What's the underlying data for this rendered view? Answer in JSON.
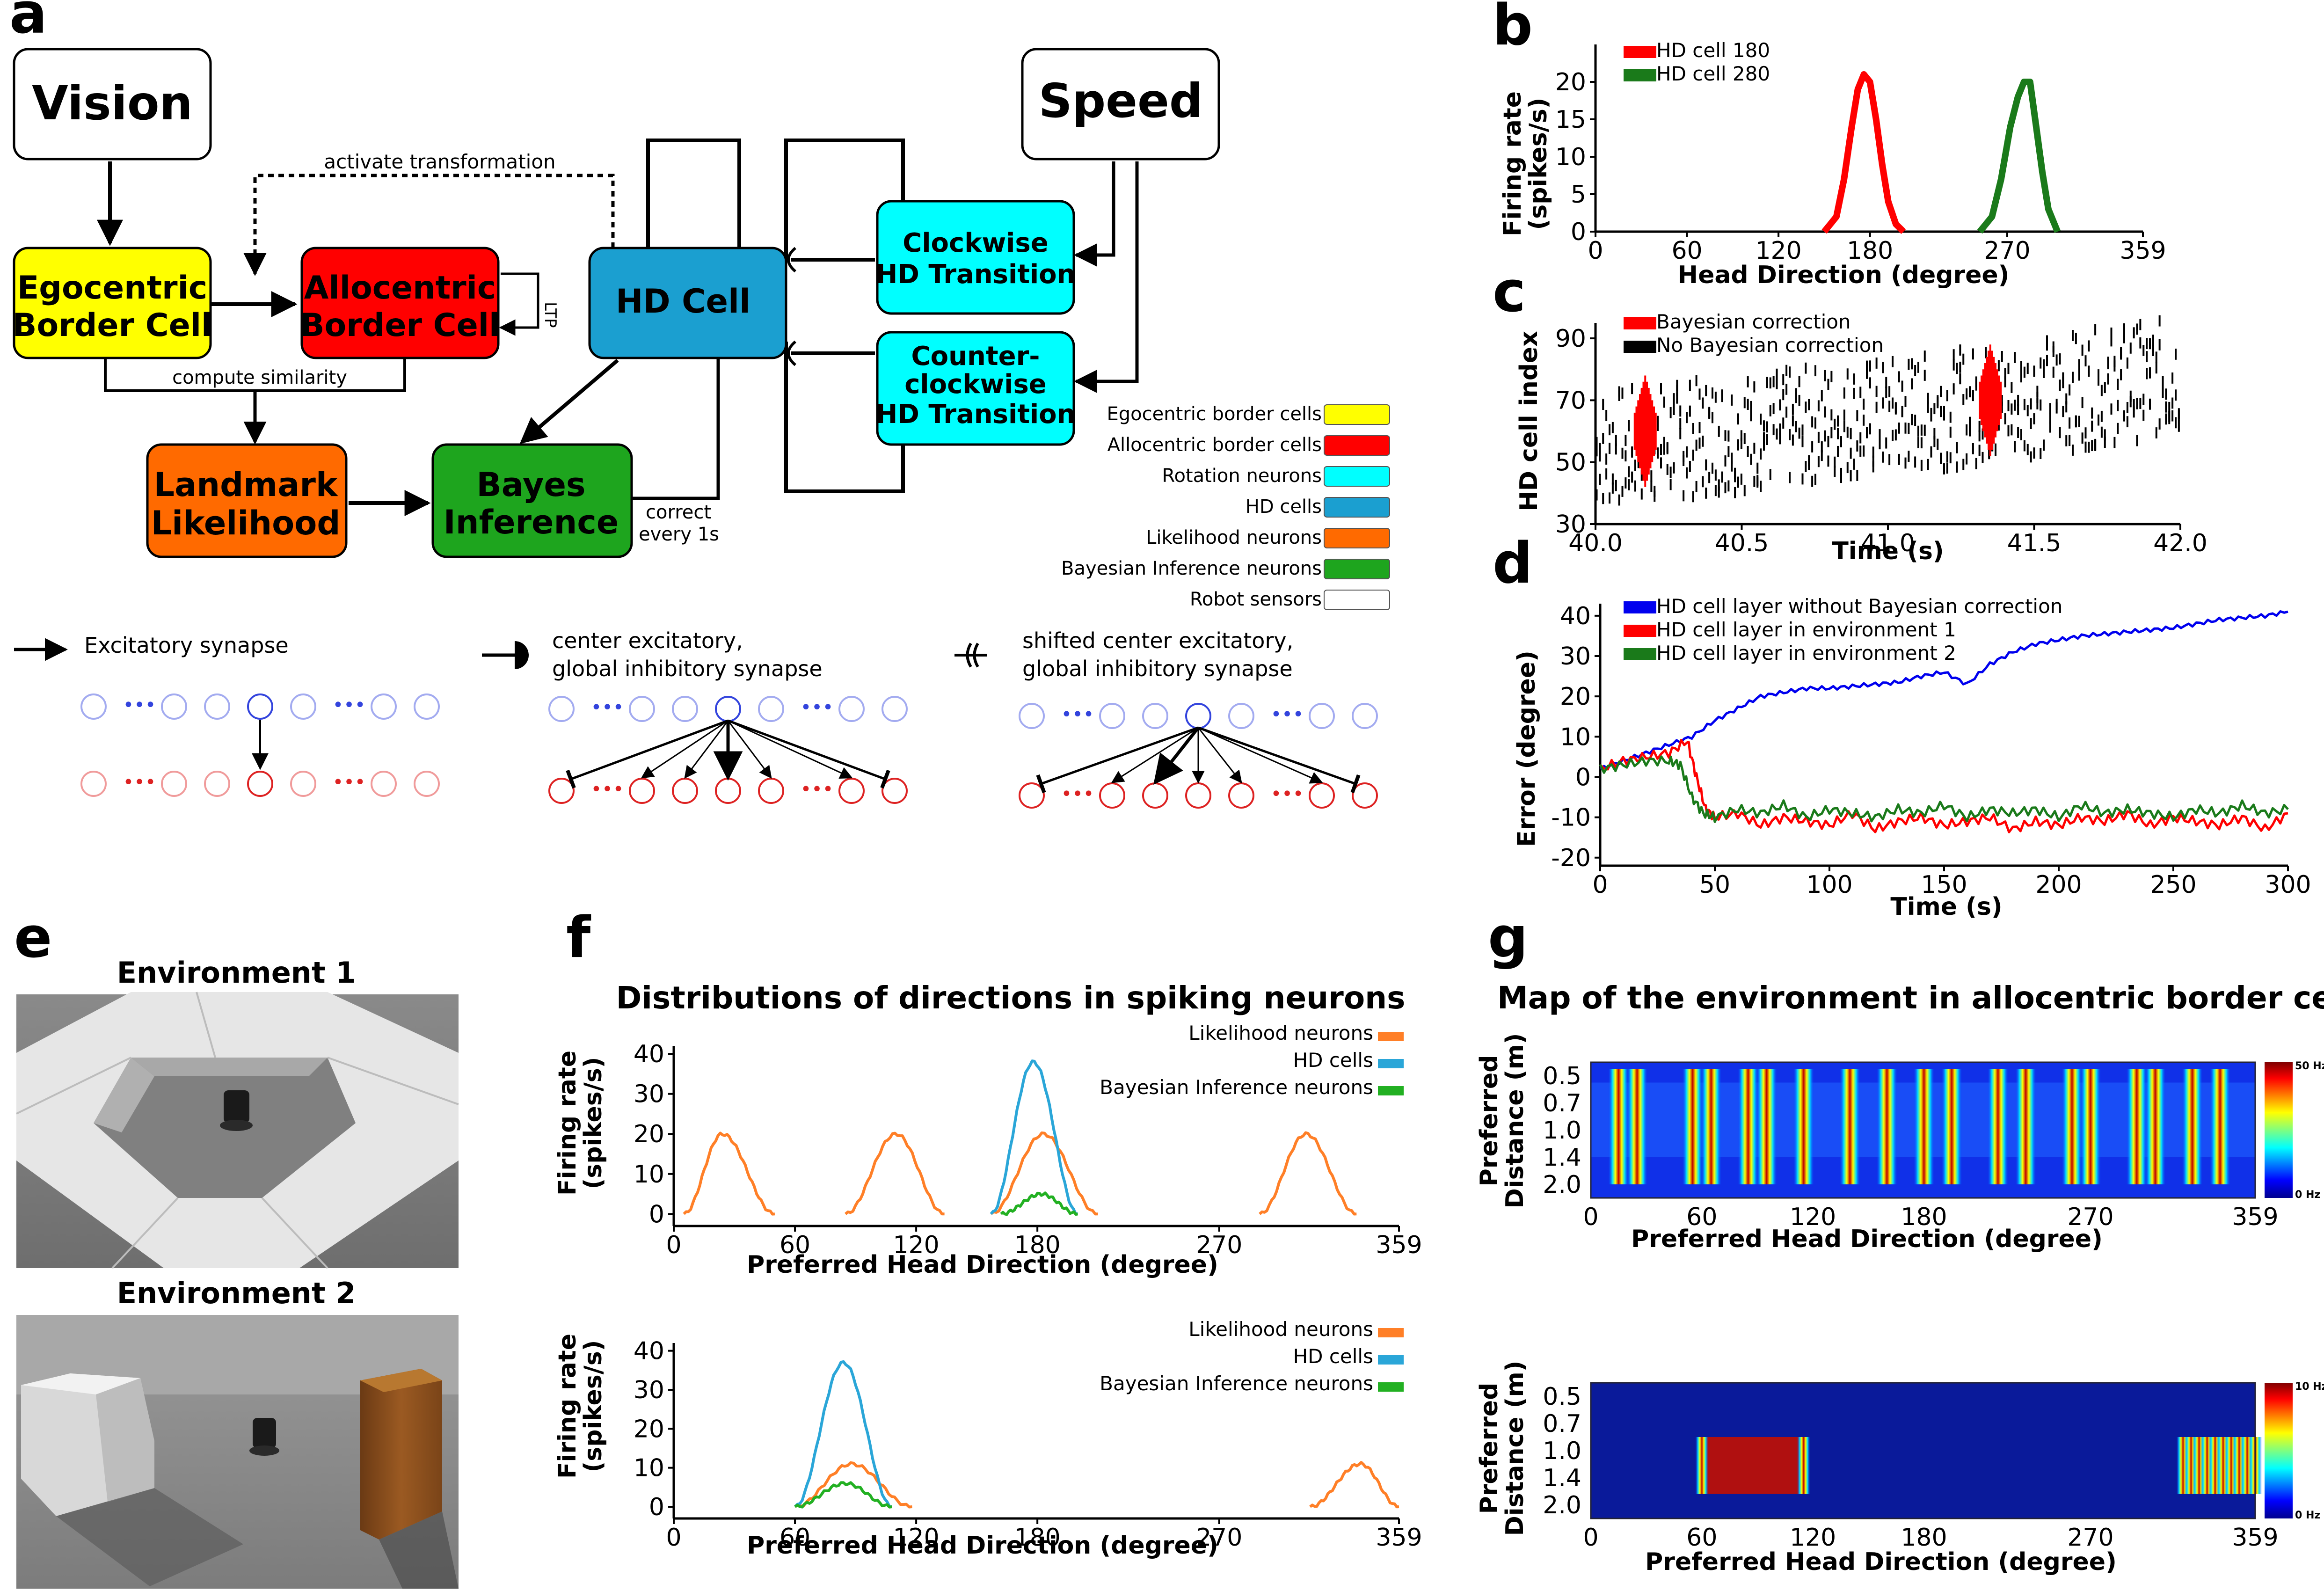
{
  "panels": {
    "a": "a",
    "b": "b",
    "c": "c",
    "d": "d",
    "e": "e",
    "f": "f",
    "g": "g"
  },
  "diagram": {
    "nodes": {
      "vision": "Vision",
      "speed": "Speed",
      "ego": [
        "Egocentric",
        "Border Cell"
      ],
      "allo": [
        "Allocentric",
        "Border Cell"
      ],
      "hd": "HD Cell",
      "cw": [
        "Clockwise",
        "HD Transition"
      ],
      "ccw": [
        "Counter-",
        "clockwise",
        "HD Transition"
      ],
      "landmark": [
        "Landmark",
        "Likelihood"
      ],
      "bayes": [
        "Bayes",
        "Inference"
      ]
    },
    "edge_labels": {
      "activate": "activate transformation",
      "similarity": "compute similarity",
      "ltp": "LTP",
      "correct": [
        "correct",
        "every 1s"
      ]
    },
    "legend": [
      {
        "label": "Egocentric border cells",
        "color": "#ffff00"
      },
      {
        "label": "Allocentric border cells",
        "color": "#ff0000"
      },
      {
        "label": "Rotation neurons",
        "color": "#00ffff"
      },
      {
        "label": "HD cells",
        "color": "#1b9fd0"
      },
      {
        "label": "Likelihood neurons",
        "color": "#ff6a00"
      },
      {
        "label": "Bayesian Inference neurons",
        "color": "#1ea51e"
      },
      {
        "label": "Robot sensors",
        "color": "#ffffff"
      }
    ],
    "synapses": {
      "excitatory": "Excitatory synapse",
      "center": [
        "center excitatory,",
        "global inhibitory synapse"
      ],
      "shifted": [
        "shifted center excitatory,",
        "global inhibitory synapse"
      ]
    }
  },
  "environments": {
    "env1": "Environment 1",
    "env2": "Environment 2"
  },
  "titles": {
    "f": "Distributions of directions in spiking neurons",
    "g": "Map of the environment in allocentric border cells"
  },
  "chart_data": [
    {
      "id": "b",
      "type": "line",
      "xlabel": "Head Direction (degree)",
      "ylabel": [
        "Firing rate",
        "(spikes/s)"
      ],
      "xlim": [
        0,
        359
      ],
      "ylim": [
        0,
        25
      ],
      "xticks": [
        "0",
        "60",
        "120",
        "180",
        "270",
        "359"
      ],
      "yticks": [
        "0",
        "5",
        "10",
        "15",
        "20"
      ],
      "series": [
        {
          "name": "HD cell 180",
          "color": "#ff0000",
          "x": [
            150,
            158,
            163,
            168,
            172,
            176,
            180,
            184,
            188,
            192,
            197,
            202
          ],
          "y": [
            0,
            2,
            7,
            14,
            19,
            21,
            20,
            15,
            9,
            4,
            1,
            0
          ]
        },
        {
          "name": "HD cell 280",
          "color": "#1a7a1a",
          "x": [
            252,
            260,
            266,
            272,
            277,
            281,
            285,
            289,
            293,
            297,
            303
          ],
          "y": [
            0,
            2,
            7,
            14,
            18,
            20,
            20,
            14,
            8,
            3,
            0
          ]
        }
      ]
    },
    {
      "id": "c",
      "type": "scatter",
      "xlabel": "Time (s)",
      "ylabel": "HD cell index",
      "xlim": [
        40.0,
        42.0
      ],
      "ylim": [
        30,
        95
      ],
      "xticks": [
        "40.0",
        "40.5",
        "41.0",
        "41.5",
        "42.0"
      ],
      "yticks": [
        "30",
        "50",
        "70",
        "90"
      ],
      "series": [
        {
          "name": "Bayesian correction",
          "color": "#ff0000",
          "bursts": [
            [
              40.17,
              60
            ],
            [
              41.35,
              70
            ]
          ]
        },
        {
          "name": "No Bayesian correction",
          "color": "#000000",
          "drift": [
            [
              40.0,
              54
            ],
            [
              41.3,
              68
            ],
            [
              42.0,
              78
            ]
          ]
        }
      ]
    },
    {
      "id": "d",
      "type": "line",
      "xlabel": "Time (s)",
      "ylabel": "Error (degree)",
      "xlim": [
        0,
        300
      ],
      "ylim": [
        -22,
        43
      ],
      "xticks": [
        "0",
        "50",
        "100",
        "150",
        "200",
        "250",
        "300"
      ],
      "yticks": [
        "-20",
        "-10",
        "0",
        "10",
        "20",
        "30",
        "40"
      ],
      "series": [
        {
          "name": "HD cell layer without  Bayesian correction",
          "color": "#0000ee",
          "x": [
            0,
            10,
            20,
            30,
            40,
            50,
            60,
            70,
            80,
            90,
            100,
            110,
            120,
            130,
            140,
            150,
            160,
            170,
            180,
            190,
            200,
            210,
            220,
            230,
            240,
            250,
            260,
            270,
            280,
            290,
            300
          ],
          "y": [
            2,
            4,
            6,
            8,
            10,
            14,
            17,
            20,
            21,
            22,
            22,
            22.5,
            23,
            23.5,
            25,
            26,
            23,
            28,
            31,
            33,
            34,
            35,
            35.5,
            36,
            36.5,
            37,
            38,
            39,
            39.5,
            40,
            41
          ]
        },
        {
          "name": "HD cell layer in environment 1",
          "color": "#ff0000",
          "x": [
            0,
            10,
            20,
            30,
            38,
            42,
            46,
            50,
            60,
            70,
            80,
            90,
            100,
            110,
            120,
            130,
            140,
            150,
            160,
            170,
            180,
            190,
            200,
            210,
            220,
            230,
            240,
            250,
            260,
            270,
            280,
            290,
            300
          ],
          "y": [
            2,
            4,
            5,
            6,
            9,
            0,
            -8,
            -10,
            -9,
            -12,
            -10,
            -11,
            -12,
            -9,
            -13,
            -11,
            -10,
            -12,
            -11,
            -10,
            -13,
            -11,
            -12,
            -10,
            -11,
            -9,
            -12,
            -10,
            -11,
            -12,
            -10,
            -13,
            -9
          ]
        },
        {
          "name": "HD cell layer in environment 2",
          "color": "#1a7a1a",
          "x": [
            0,
            10,
            20,
            30,
            35,
            40,
            45,
            50,
            60,
            70,
            80,
            90,
            100,
            110,
            120,
            130,
            140,
            150,
            160,
            170,
            180,
            190,
            200,
            210,
            220,
            230,
            240,
            250,
            260,
            270,
            280,
            290,
            300
          ],
          "y": [
            2,
            3,
            4,
            4,
            3,
            -5,
            -9,
            -10,
            -8,
            -9,
            -7,
            -10,
            -8,
            -9,
            -10,
            -8,
            -9,
            -7,
            -10,
            -8,
            -9,
            -8,
            -10,
            -7,
            -9,
            -8,
            -9,
            -10,
            -8,
            -9,
            -7,
            -9,
            -8
          ]
        }
      ]
    },
    {
      "id": "f1",
      "type": "line",
      "xlabel": "Preferred Head Direction (degree)",
      "ylabel": [
        "Firing rate",
        "(spikes/s)"
      ],
      "xlim": [
        0,
        359
      ],
      "ylim": [
        -3,
        42
      ],
      "xticks": [
        "0",
        "60",
        "120",
        "180",
        "270",
        "359"
      ],
      "yticks": [
        "0",
        "10",
        "20",
        "30",
        "40"
      ],
      "series": [
        {
          "name": "Likelihood neurons",
          "color": "#ff7f27",
          "peaks": [
            [
              5,
              24,
              50
            ],
            [
              85,
              110,
              134
            ],
            [
              157,
              183,
              210
            ],
            [
              290,
              313,
              338
            ]
          ],
          "height": 20
        },
        {
          "name": "HD cells",
          "color": "#2aa6d8",
          "peaks": [
            [
              157,
              178,
              200
            ]
          ],
          "height": 38
        },
        {
          "name": "Bayesian Inference neurons",
          "color": "#22b022",
          "peaks": [
            [
              162,
              182,
              200
            ]
          ],
          "height": 5
        }
      ]
    },
    {
      "id": "f2",
      "type": "line",
      "xlabel": "Preferred Head Direction (degree)",
      "ylabel": [
        "Firing rate",
        "(spikes/s)"
      ],
      "xlim": [
        0,
        359
      ],
      "ylim": [
        -3,
        42
      ],
      "xticks": [
        "0",
        "60",
        "120",
        "180",
        "270",
        "359"
      ],
      "yticks": [
        "0",
        "10",
        "20",
        "30",
        "40"
      ],
      "series": [
        {
          "name": "Likelihood neurons",
          "color": "#ff7f27",
          "peaks": [
            [
              60,
              88,
              118
            ],
            [
              315,
              340,
              359
            ]
          ],
          "height": 11
        },
        {
          "name": "HD cells",
          "color": "#2aa6d8",
          "peaks": [
            [
              60,
              84,
              108
            ]
          ],
          "height": 37
        },
        {
          "name": "Bayesian Inference neurons",
          "color": "#22b022",
          "peaks": [
            [
              60,
              85,
              108
            ]
          ],
          "height": 6
        }
      ]
    },
    {
      "id": "g1",
      "type": "heatmap",
      "xlabel": "Preferred Head Direction (degree)",
      "ylabel": [
        "Preferred",
        "Distance (m)"
      ],
      "xlim": [
        0,
        359
      ],
      "xticks": [
        "0",
        "60",
        "120",
        "180",
        "270",
        "359"
      ],
      "yticks": [
        "0.5",
        "0.7",
        "1.0",
        "1.4",
        "2.0"
      ],
      "colorbar": [
        "50 Hz",
        "0 Hz"
      ],
      "stripes": [
        15,
        25,
        55,
        65,
        85,
        95,
        115,
        140,
        160,
        180,
        195,
        220,
        235,
        260,
        270,
        295,
        305,
        325,
        340
      ]
    },
    {
      "id": "g2",
      "type": "heatmap",
      "xlabel": "Preferred Head Direction (degree)",
      "ylabel": [
        "Preferred",
        "Distance (m)"
      ],
      "xlim": [
        0,
        359
      ],
      "xticks": [
        "0",
        "60",
        "120",
        "180",
        "270",
        "359"
      ],
      "yticks": [
        "0.5",
        "0.7",
        "1.0",
        "1.4",
        "2.0"
      ],
      "colorbar": [
        "10 Hz",
        "0 Hz"
      ],
      "band": {
        "rows": [
          "1.0",
          "1.4",
          "2.0"
        ],
        "ranges": [
          [
            60,
            115
          ],
          [
            320,
            359
          ]
        ]
      }
    }
  ]
}
